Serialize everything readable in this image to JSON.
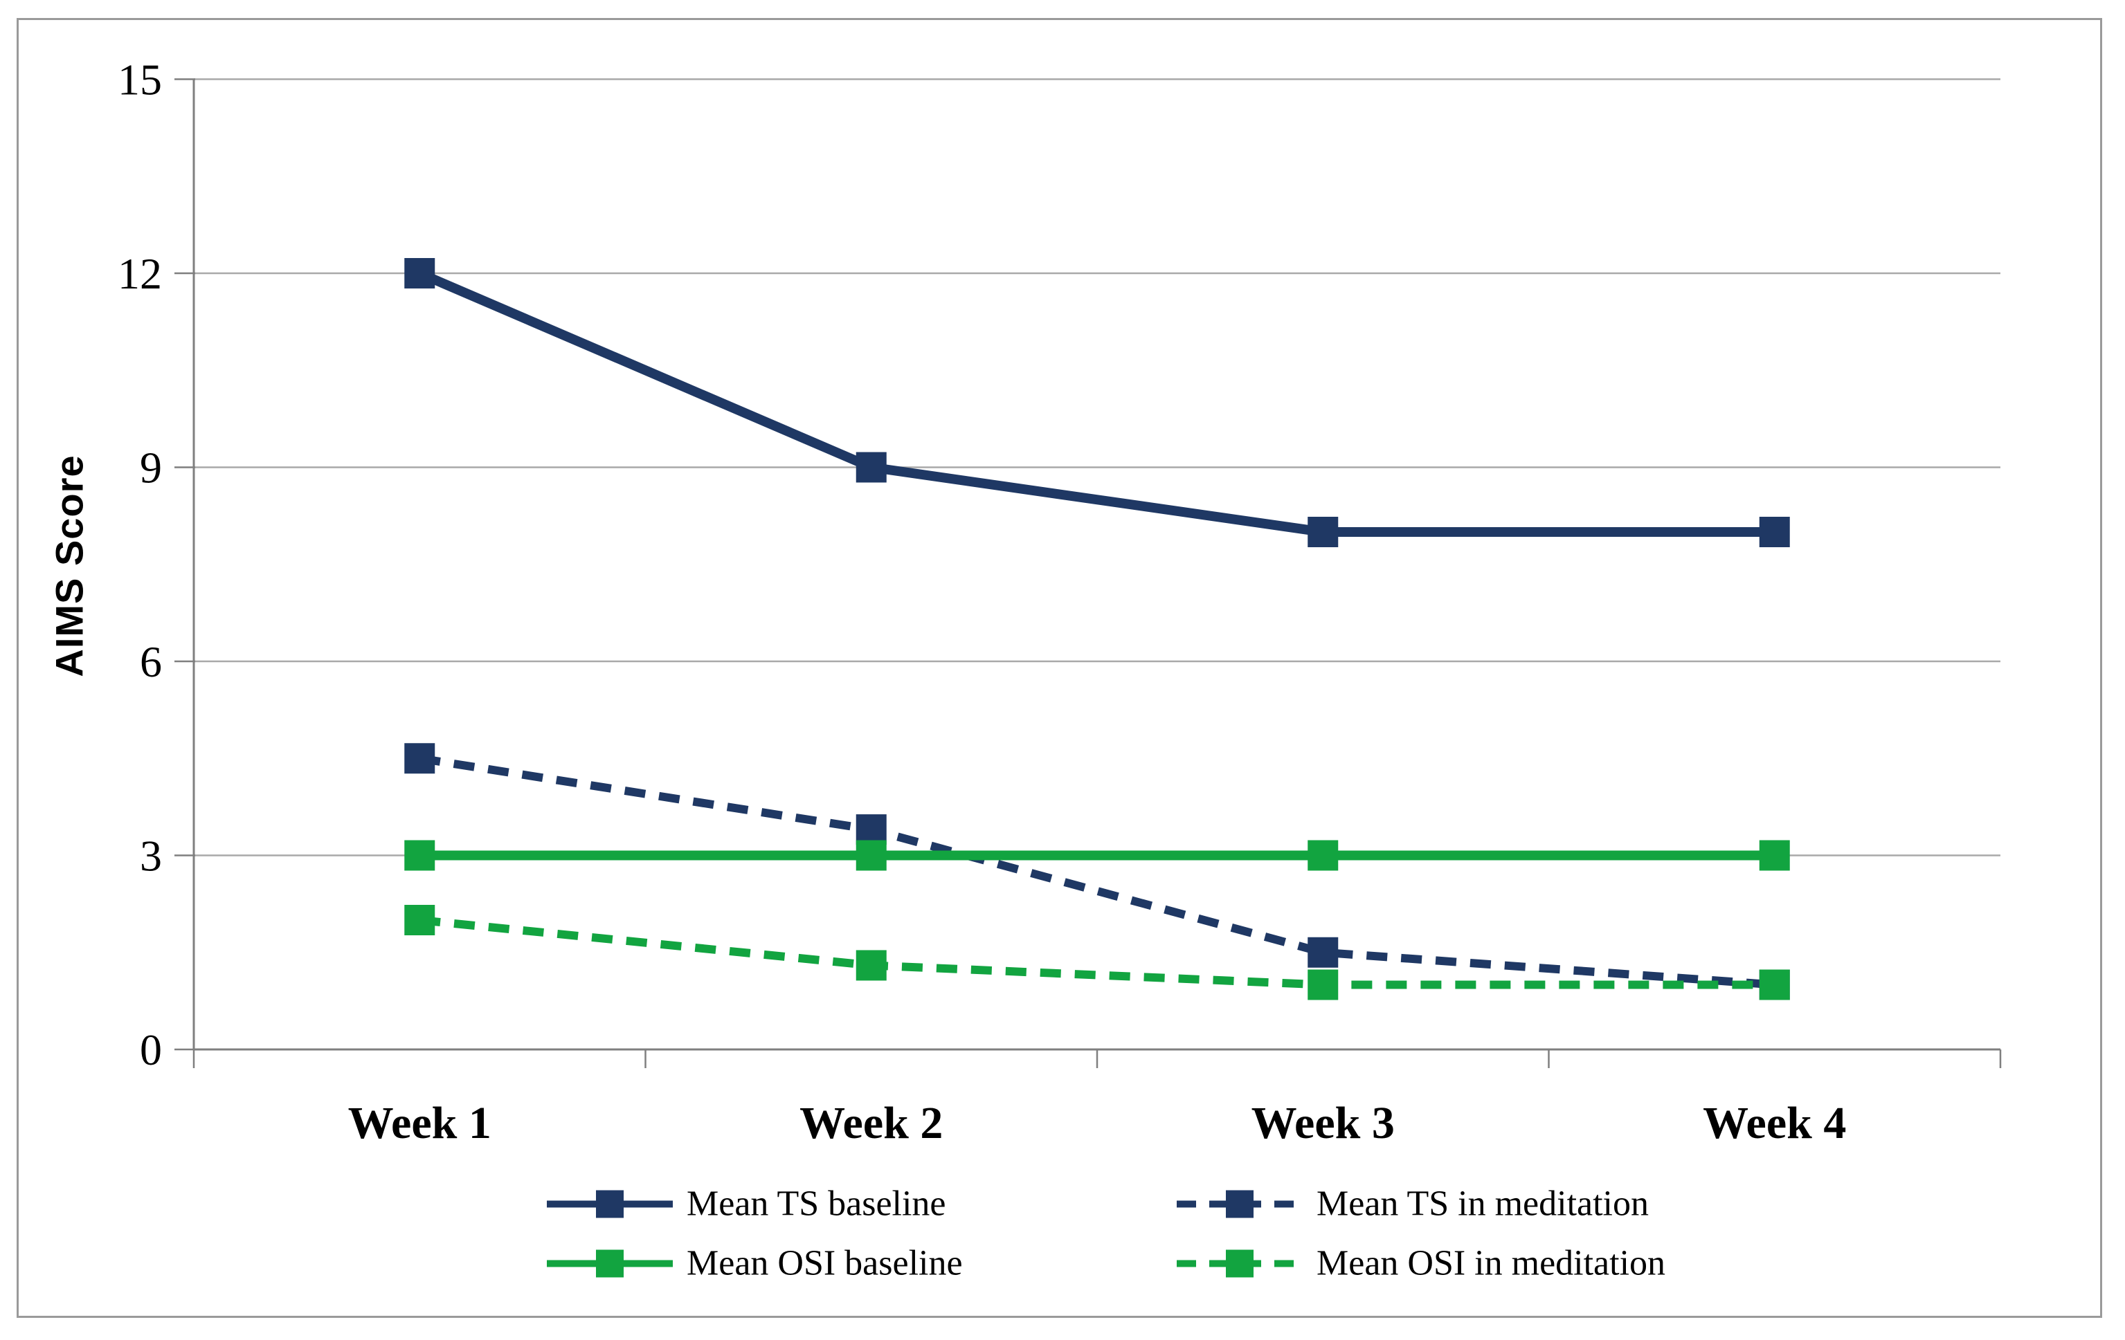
{
  "chart_data": {
    "type": "line",
    "title": "",
    "ylabel": "AIMS Score",
    "xlabel": "",
    "categories": [
      "Week 1",
      "Week 2",
      "Week 3",
      "Week 4"
    ],
    "y_ticks": [
      0,
      3,
      6,
      9,
      12,
      15
    ],
    "ylim": [
      0,
      15
    ],
    "grid": true,
    "legend_position": "bottom",
    "series": [
      {
        "name": "Mean TS baseline",
        "color": "#1F3864",
        "line_style": "solid",
        "marker": "square",
        "values": [
          12,
          9,
          8,
          8
        ]
      },
      {
        "name": "Mean TS in meditation",
        "color": "#1F3864",
        "line_style": "dashed",
        "marker": "square",
        "values": [
          4.5,
          3.4,
          1.5,
          1
        ]
      },
      {
        "name": "Mean OSI baseline",
        "color": "#12A440",
        "line_style": "solid",
        "marker": "square",
        "values": [
          3,
          3,
          3,
          3
        ]
      },
      {
        "name": "Mean OSI in meditation",
        "color": "#12A440",
        "line_style": "dashed",
        "marker": "square",
        "values": [
          2,
          1.3,
          1,
          1
        ]
      }
    ],
    "colors": {
      "grid": "#A9A9A9",
      "axis": "#7F7F7F",
      "frame": "#9A9A9A",
      "text": "#000000",
      "background": "#FFFFFF"
    }
  }
}
